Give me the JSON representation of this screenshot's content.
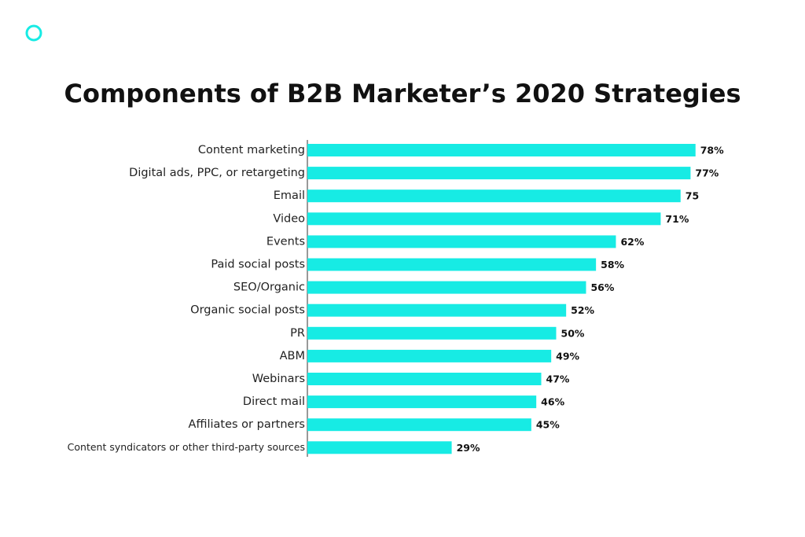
{
  "chart_data": {
    "type": "bar",
    "orientation": "horizontal",
    "title": "Components of B2B Marketer’s 2020 Strategies",
    "categories": [
      "Content marketing",
      "Digital ads, PPC, or retargeting",
      "Email",
      "Video",
      "Events",
      "Paid social posts",
      "SEO/Organic",
      "Organic social posts",
      "PR",
      "ABM",
      "Webinars",
      "Direct mail",
      "Affiliates or partners",
      "Content syndicators or other third-party sources"
    ],
    "values": [
      78,
      77,
      75,
      71,
      62,
      58,
      56,
      52,
      50,
      49,
      47,
      46,
      45,
      29
    ],
    "value_labels": [
      "78%",
      "77%",
      "75",
      "71%",
      "62%",
      "58%",
      "56%",
      "52%",
      "50%",
      "49%",
      "47%",
      "46%",
      "45%",
      "29%"
    ],
    "color": "#17ebe4"
  }
}
